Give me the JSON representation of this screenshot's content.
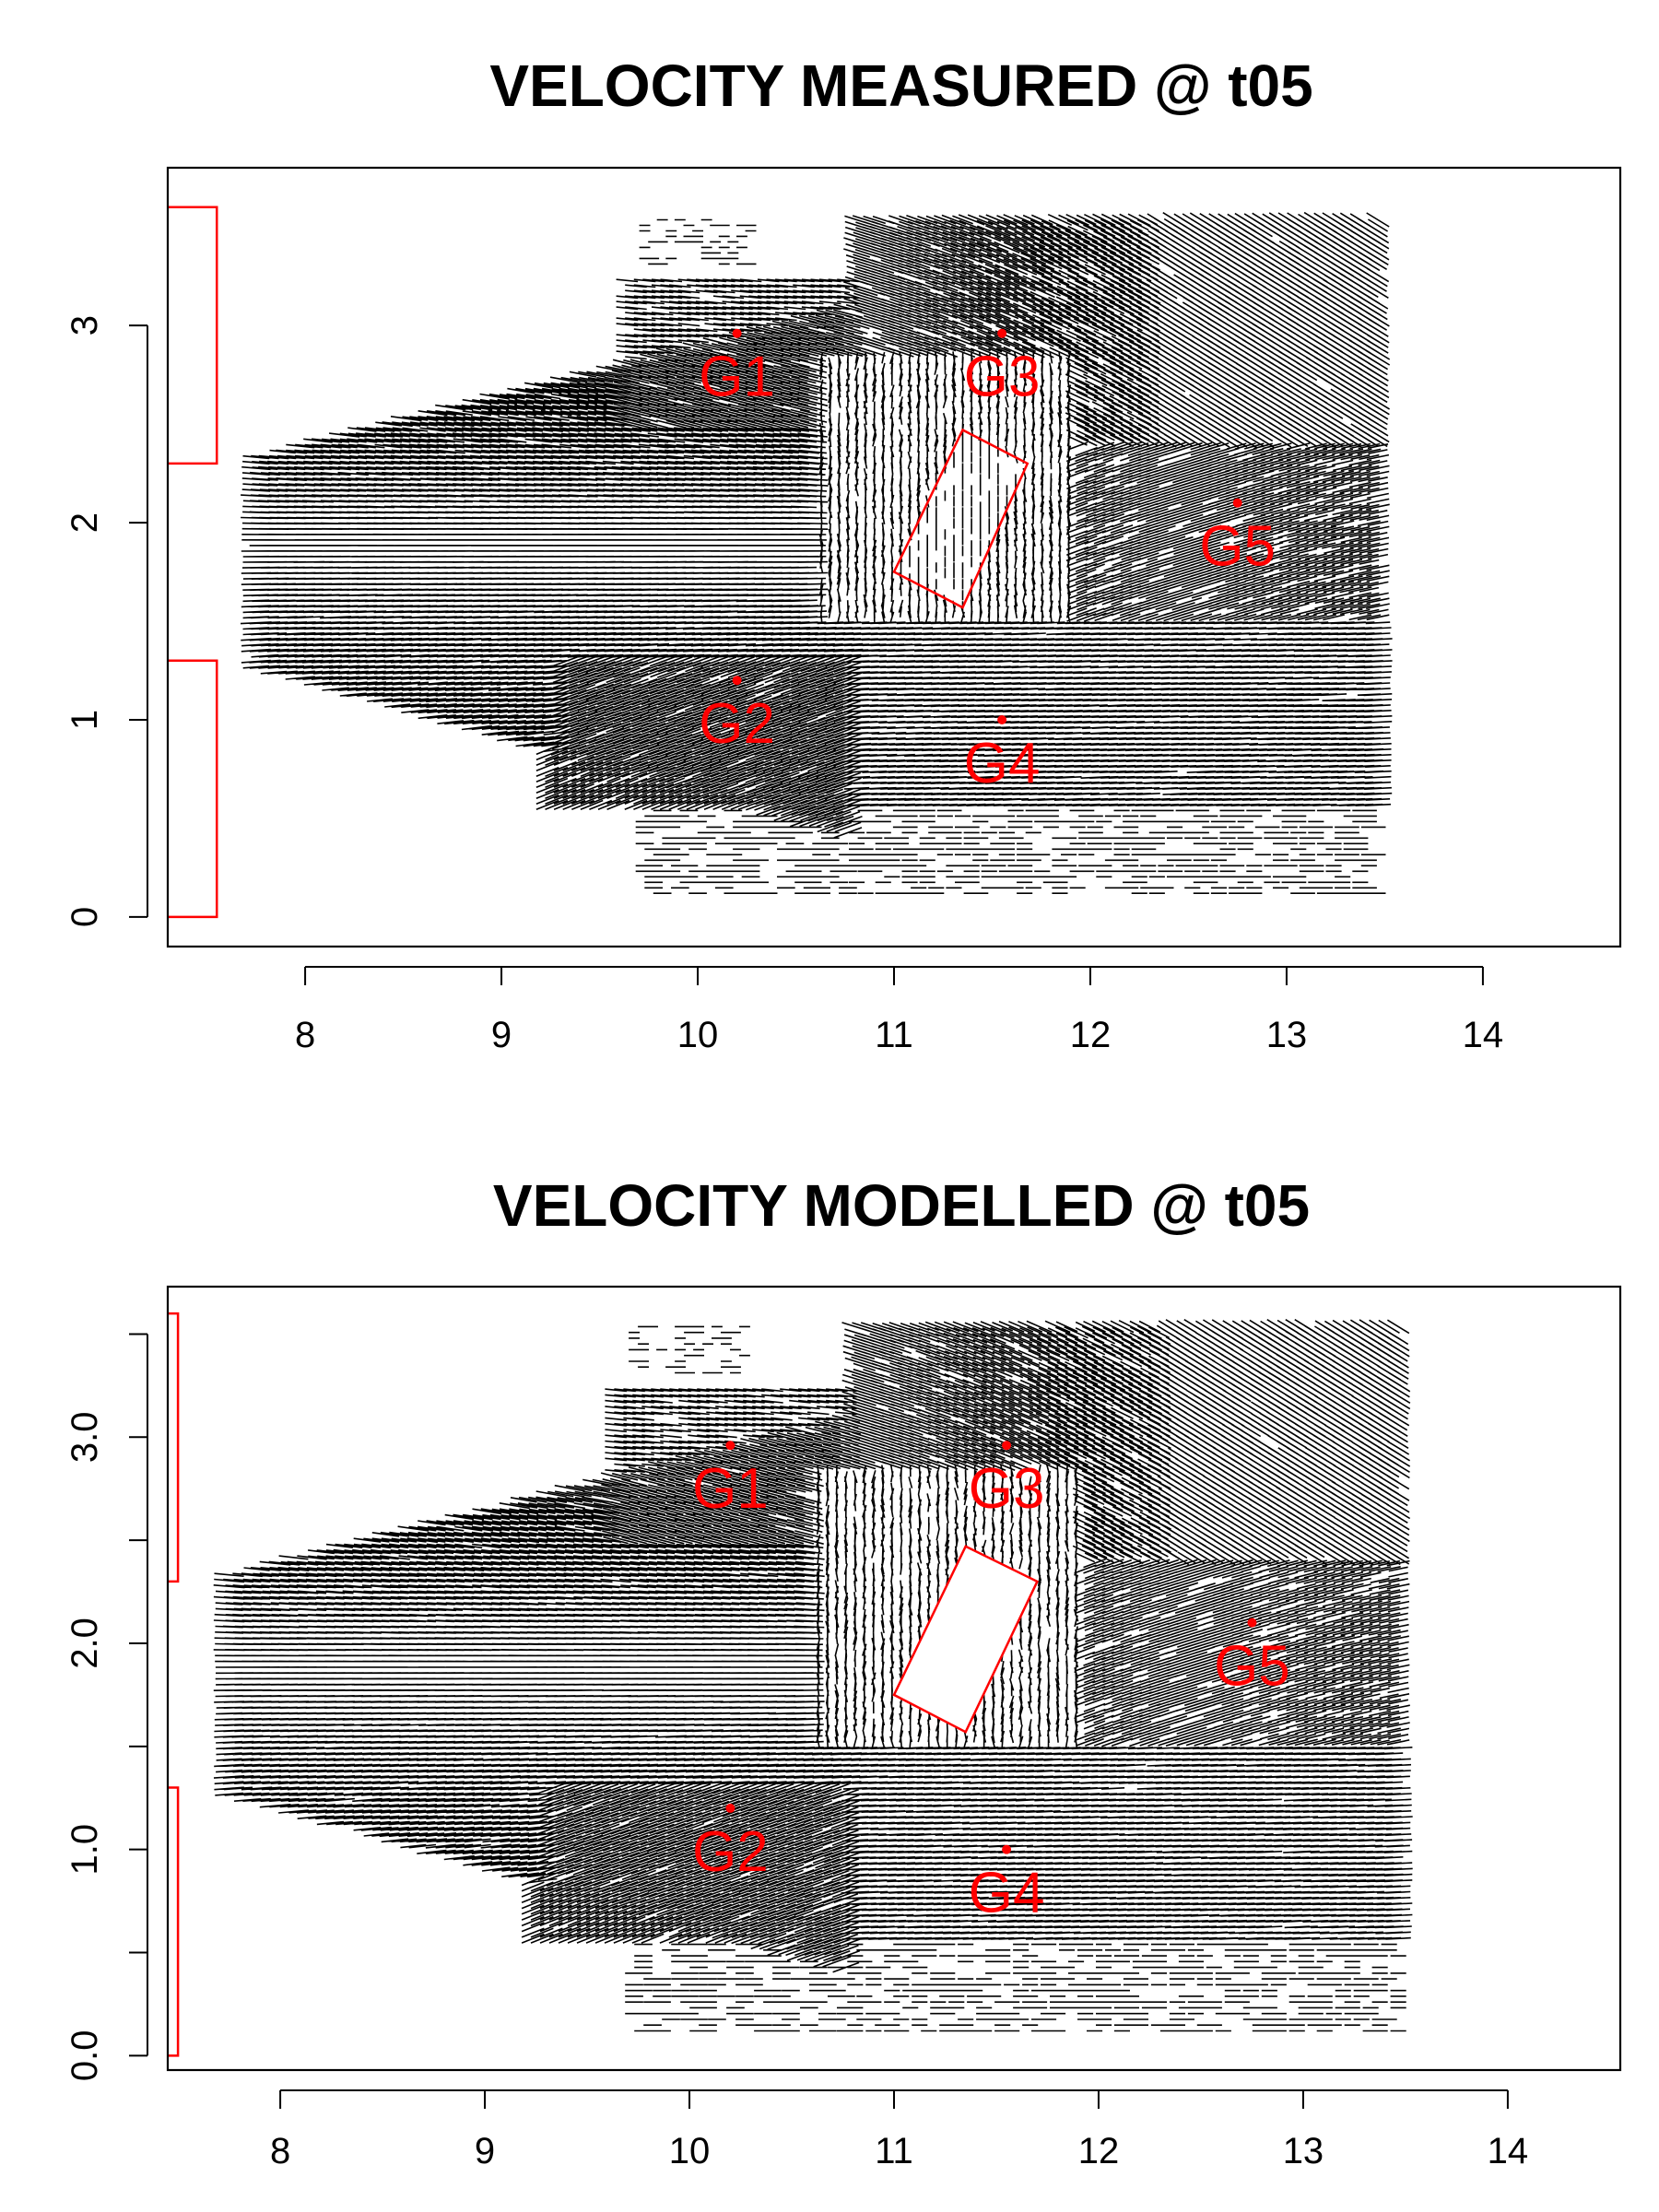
{
  "colors": {
    "annotation": "#ff0000",
    "vector": "#000000",
    "axis": "#000000",
    "background": "#ffffff"
  },
  "chart_data": [
    {
      "type": "vector_field",
      "title": "VELOCITY MEASURED @ t05",
      "xlabel": "",
      "ylabel": "",
      "xlim": [
        7.3,
        14.7
      ],
      "ylim": [
        -0.15,
        3.8
      ],
      "x_ticks": [
        8,
        9,
        10,
        11,
        12,
        13,
        14
      ],
      "x_tick_labels": [
        "8",
        "9",
        "10",
        "11",
        "12",
        "13",
        "14"
      ],
      "y_ticks": [
        0,
        1,
        2,
        3
      ],
      "y_tick_labels": [
        "0",
        "1",
        "2",
        "3"
      ],
      "y_minor_ticks": [],
      "gauges": [
        {
          "label": "G1",
          "x": 10.2,
          "y": 2.96
        },
        {
          "label": "G2",
          "x": 10.2,
          "y": 1.2
        },
        {
          "label": "G3",
          "x": 11.55,
          "y": 2.96
        },
        {
          "label": "G4",
          "x": 11.55,
          "y": 1.0
        },
        {
          "label": "G5",
          "x": 12.75,
          "y": 2.1
        }
      ],
      "obstacle": [
        [
          11.0,
          1.75
        ],
        [
          11.35,
          2.47
        ],
        [
          11.68,
          2.3
        ],
        [
          11.35,
          1.57
        ]
      ],
      "inlets": [
        {
          "x_outer": 7.3,
          "x_inner": 7.55,
          "y0": 2.3,
          "y1": 3.6
        },
        {
          "x_outer": 7.3,
          "x_inner": 7.55,
          "y0": 0.0,
          "y1": 1.3
        }
      ],
      "grid": false,
      "legend": "none"
    },
    {
      "type": "vector_field",
      "title": "VELOCITY MODELLED @ t05",
      "xlabel": "",
      "ylabel": "",
      "xlim": [
        7.45,
        14.55
      ],
      "ylim": [
        -0.07,
        3.73
      ],
      "x_ticks": [
        8,
        9,
        10,
        11,
        12,
        13,
        14
      ],
      "x_tick_labels": [
        "8",
        "9",
        "10",
        "11",
        "12",
        "13",
        "14"
      ],
      "y_ticks": [
        0.0,
        1.0,
        2.0,
        3.0
      ],
      "y_tick_labels": [
        "0.0",
        "1.0",
        "2.0",
        "3.0"
      ],
      "y_minor_ticks": [
        0.5,
        1.5,
        2.5,
        3.5
      ],
      "gauges": [
        {
          "label": "G1",
          "x": 10.2,
          "y": 2.96
        },
        {
          "label": "G2",
          "x": 10.2,
          "y": 1.2
        },
        {
          "label": "G3",
          "x": 11.55,
          "y": 2.96
        },
        {
          "label": "G4",
          "x": 11.55,
          "y": 1.0
        },
        {
          "label": "G5",
          "x": 12.75,
          "y": 2.1
        }
      ],
      "obstacle": [
        [
          11.0,
          1.75
        ],
        [
          11.35,
          2.47
        ],
        [
          11.7,
          2.3
        ],
        [
          11.35,
          1.57
        ]
      ],
      "inlets": [
        {
          "x_outer": 7.45,
          "x_inner": 7.5,
          "y0": 2.3,
          "y1": 3.6
        },
        {
          "x_outer": 7.45,
          "x_inner": 7.5,
          "y0": 0.0,
          "y1": 1.3
        }
      ],
      "grid": false,
      "legend": "none"
    }
  ]
}
